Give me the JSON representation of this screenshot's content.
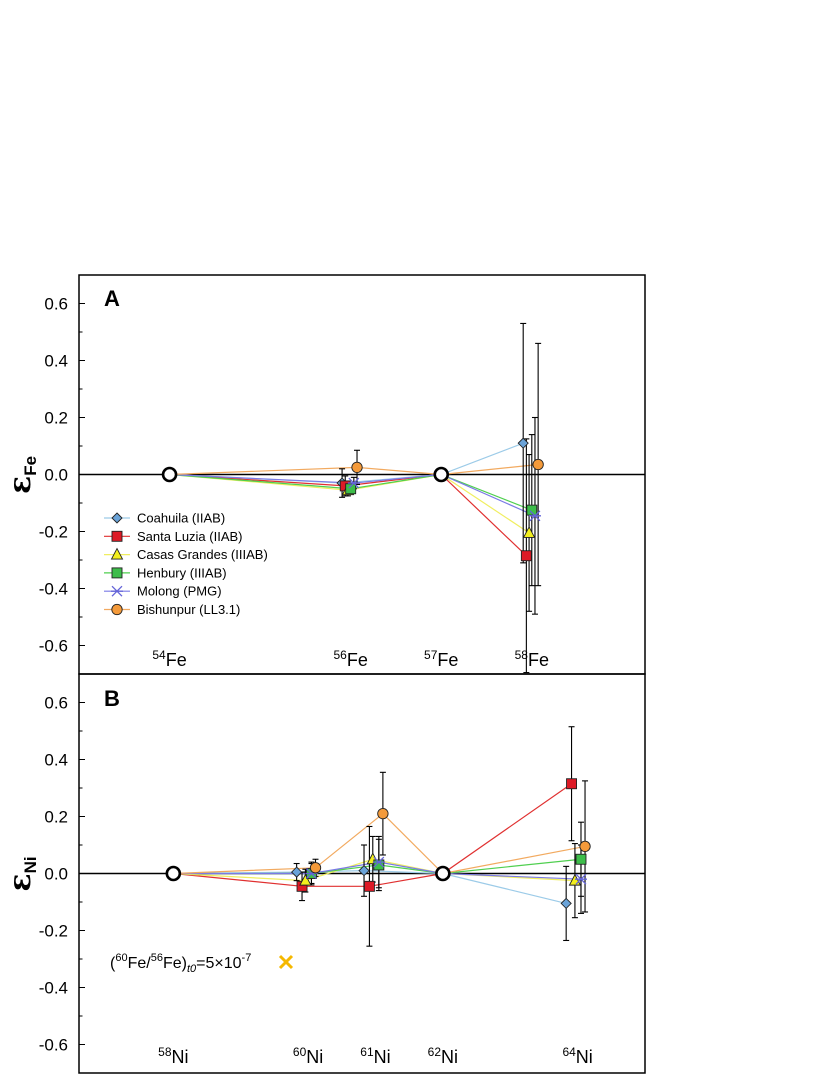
{
  "chart_data": [
    {
      "type": "line",
      "panel": "A",
      "ylabel": "εFe",
      "ylabel_main": "ε",
      "ylabel_sub": "Fe",
      "ylim": [
        -0.7,
        0.7
      ],
      "yticks": [
        -0.6,
        -0.4,
        -0.2,
        0.0,
        0.2,
        0.4,
        0.6
      ],
      "ytick_labels": [
        "-0.6",
        "-0.4",
        "-0.2",
        "0.0",
        "0.2",
        "0.4",
        "0.6"
      ],
      "x_isotopes": [
        {
          "mass": "54",
          "element": "Fe",
          "x": 54,
          "normalizing": true
        },
        {
          "mass": "56",
          "element": "Fe",
          "x": 56,
          "normalizing": false
        },
        {
          "mass": "57",
          "element": "Fe",
          "x": 57,
          "normalizing": true
        },
        {
          "mass": "58",
          "element": "Fe",
          "x": 58,
          "normalizing": false
        }
      ],
      "xlim": [
        53.0,
        59.25
      ],
      "series": [
        {
          "name": "Coahuila (IIAB)",
          "color": "#9ccbe8",
          "fill": "#6aa3d8",
          "marker": "diamond",
          "offset": -0.095,
          "values": [
            0,
            -0.03,
            0,
            0.11
          ],
          "errors": [
            0,
            0.05,
            0,
            0.42
          ]
        },
        {
          "name": "Santa Luzia (IIAB)",
          "color": "#e03030",
          "fill": "#dd1a26",
          "marker": "square",
          "offset": -0.06,
          "values": [
            0,
            -0.04,
            0,
            -0.285
          ],
          "errors": [
            0,
            0.035,
            0,
            0.41
          ]
        },
        {
          "name": "Casas Grandes (IIIAB)",
          "color": "#f0ee60",
          "fill": "#f2ef1d",
          "marker": "triangle",
          "offset": -0.03,
          "values": [
            0,
            -0.055,
            0,
            -0.205
          ],
          "errors": [
            0,
            0.02,
            0,
            0.275
          ]
        },
        {
          "name": "Henbury (IIIAB)",
          "color": "#4fcf4f",
          "fill": "#3dbd4a",
          "marker": "square",
          "offset": 0.0,
          "values": [
            0,
            -0.05,
            0,
            -0.125
          ],
          "errors": [
            0,
            0.02,
            0,
            0.265
          ]
        },
        {
          "name": "Molong (PMG)",
          "color": "#7a7ae6",
          "fill": "#6464d8",
          "marker": "asterisk",
          "offset": 0.035,
          "values": [
            0,
            -0.03,
            0,
            -0.145
          ],
          "errors": [
            0,
            0.02,
            0,
            0.345
          ]
        },
        {
          "name": "Bishunpur (LL3.1)",
          "color": "#f2aa60",
          "fill": "#f49a3a",
          "marker": "circle",
          "offset": 0.07,
          "values": [
            0,
            0.025,
            0,
            0.035
          ],
          "errors": [
            0,
            0.06,
            0,
            0.425
          ]
        }
      ]
    },
    {
      "type": "line",
      "panel": "B",
      "ylabel": "εNi",
      "ylabel_main": "ε",
      "ylabel_sub": "Ni",
      "ylim": [
        -0.7,
        0.7
      ],
      "yticks": [
        -0.6,
        -0.4,
        -0.2,
        0.0,
        0.2,
        0.4,
        0.6
      ],
      "ytick_labels": [
        "-0.6",
        "-0.4",
        "-0.2",
        "0.0",
        "0.2",
        "0.4",
        "0.6"
      ],
      "x_isotopes": [
        {
          "mass": "58",
          "element": "Ni",
          "x": 58,
          "normalizing": true
        },
        {
          "mass": "60",
          "element": "Ni",
          "x": 60,
          "normalizing": false
        },
        {
          "mass": "61",
          "element": "Ni",
          "x": 61,
          "normalizing": false
        },
        {
          "mass": "62",
          "element": "Ni",
          "x": 62,
          "normalizing": true
        },
        {
          "mass": "64",
          "element": "Ni",
          "x": 64,
          "normalizing": false
        }
      ],
      "xlim": [
        56.6,
        65.0
      ],
      "series": [
        {
          "name": "Coahuila (IIAB)",
          "color": "#9ccbe8",
          "fill": "#6aa3d8",
          "marker": "diamond",
          "offset": -0.17,
          "values": [
            0,
            0.005,
            0.01,
            0,
            -0.105
          ],
          "errors": [
            0,
            0.03,
            0.09,
            0,
            0.13
          ]
        },
        {
          "name": "Santa Luzia (IIAB)",
          "color": "#e03030",
          "fill": "#dd1a26",
          "marker": "square",
          "offset": -0.09,
          "values": [
            0,
            -0.045,
            -0.045,
            0,
            0.315
          ],
          "errors": [
            0,
            0.05,
            0.21,
            0,
            0.2
          ]
        },
        {
          "name": "Casas Grandes (IIIAB)",
          "color": "#f0ee60",
          "fill": "#f2ef1d",
          "marker": "triangle",
          "offset": -0.04,
          "values": [
            0,
            -0.025,
            0.05,
            0,
            -0.025
          ],
          "errors": [
            0,
            0.04,
            0.08,
            0,
            0.13
          ]
        },
        {
          "name": "Henbury (IIIAB)",
          "color": "#4fcf4f",
          "fill": "#3dbd4a",
          "marker": "square",
          "offset": 0.05,
          "values": [
            0,
            0.0,
            0.03,
            0,
            0.05
          ],
          "errors": [
            0,
            0.035,
            0.09,
            0,
            0.13
          ]
        },
        {
          "name": "Molong (PMG)",
          "color": "#7a7ae6",
          "fill": "#6464d8",
          "marker": "asterisk",
          "offset": 0.05,
          "values": [
            0,
            0.0,
            0.04,
            0,
            -0.02
          ],
          "errors": [
            0,
            0.04,
            0.09,
            0,
            0.12
          ]
        },
        {
          "name": "Bishunpur (LL3.1)",
          "color": "#f2aa60",
          "fill": "#f49a3a",
          "marker": "circle",
          "offset": 0.11,
          "values": [
            0,
            0.02,
            0.21,
            0,
            0.095
          ],
          "errors": [
            0,
            0.03,
            0.145,
            0,
            0.23
          ]
        }
      ],
      "annotation": {
        "prefix": "(",
        "iso1_mass": "60",
        "iso1_el": "Fe/",
        "iso2_mass": "56",
        "iso2_el": "Fe)",
        "subscript": "t0",
        "rest": "=5×10",
        "exponent": "-7",
        "marker": "x",
        "marker_color": "#f5b800",
        "value": -0.31
      }
    }
  ]
}
